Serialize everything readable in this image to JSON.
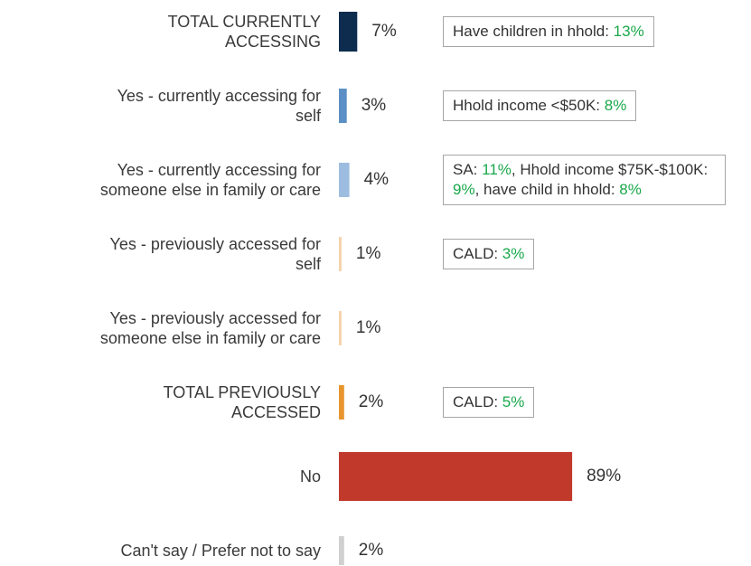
{
  "chart_data": {
    "type": "bar",
    "orientation": "horizontal",
    "categories": [
      "TOTAL CURRENTLY\nACCESSING",
      "Yes - currently accessing for\nself",
      "Yes - currently accessing for\nsomeone else in family or care",
      "Yes - previously accessed for\nself",
      "Yes - previously accessed for\nsomeone else in family or care",
      "TOTAL PREVIOUSLY\nACCESSED",
      "No",
      "Can't say / Prefer not to say"
    ],
    "values": [
      7,
      3,
      4,
      1,
      1,
      2,
      89,
      2
    ],
    "value_labels": [
      "7%",
      "3%",
      "4%",
      "1%",
      "1%",
      "2%",
      "89%",
      "2%"
    ],
    "colors": [
      "#0d2c4e",
      "#5b8fc5",
      "#9dbde0",
      "#f6d3ab",
      "#f6d3ab",
      "#e8952e",
      "#c0392b",
      "#d0d0d0"
    ],
    "xlim": [
      0,
      100
    ],
    "highlight_color": "#1aa84b",
    "annotations": [
      [
        {
          "text": "Have children in hhold: "
        },
        {
          "text": "13%",
          "highlight": true
        }
      ],
      [
        {
          "text": "Hhold income <$50K: "
        },
        {
          "text": "8%",
          "highlight": true
        }
      ],
      [
        {
          "text": "SA: "
        },
        {
          "text": "11%",
          "highlight": true
        },
        {
          "text": ", Hhold income $75K-$100K: "
        },
        {
          "text": "9%",
          "highlight": true
        },
        {
          "text": ", have child in hhold: "
        },
        {
          "text": "8%",
          "highlight": true
        }
      ],
      [
        {
          "text": "CALD: "
        },
        {
          "text": "3%",
          "highlight": true
        }
      ],
      null,
      [
        {
          "text": "CALD: "
        },
        {
          "text": "5%",
          "highlight": true
        }
      ],
      null,
      null
    ]
  }
}
